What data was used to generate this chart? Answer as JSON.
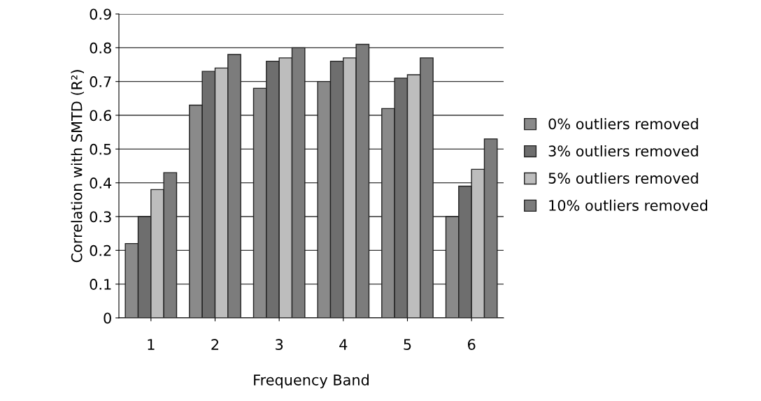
{
  "chart_data": {
    "type": "bar",
    "xlabel": "Frequency Band",
    "ylabel": "Correlation with SMTD (R²)",
    "categories": [
      "1",
      "2",
      "3",
      "4",
      "5",
      "6"
    ],
    "series": [
      {
        "name": "0% outliers removed",
        "color": "#8a8a8a",
        "values": [
          0.22,
          0.63,
          0.68,
          0.7,
          0.62,
          0.3
        ]
      },
      {
        "name": "3% outliers removed",
        "color": "#6e6e6e",
        "values": [
          0.3,
          0.73,
          0.76,
          0.76,
          0.71,
          0.39
        ]
      },
      {
        "name": "5% outliers removed",
        "color": "#bdbdbd",
        "values": [
          0.38,
          0.74,
          0.77,
          0.77,
          0.72,
          0.44
        ]
      },
      {
        "name": "10% outliers removed",
        "color": "#7c7c7c",
        "values": [
          0.43,
          0.78,
          0.8,
          0.81,
          0.77,
          0.53
        ]
      }
    ],
    "ylim": [
      0,
      0.9
    ],
    "yticks": [
      {
        "value": 0,
        "label": "0"
      },
      0.1,
      0.2,
      0.3,
      0.4,
      0.5,
      0.6,
      0.7,
      0.8,
      0.9
    ],
    "grid": "y",
    "legend": "right"
  }
}
